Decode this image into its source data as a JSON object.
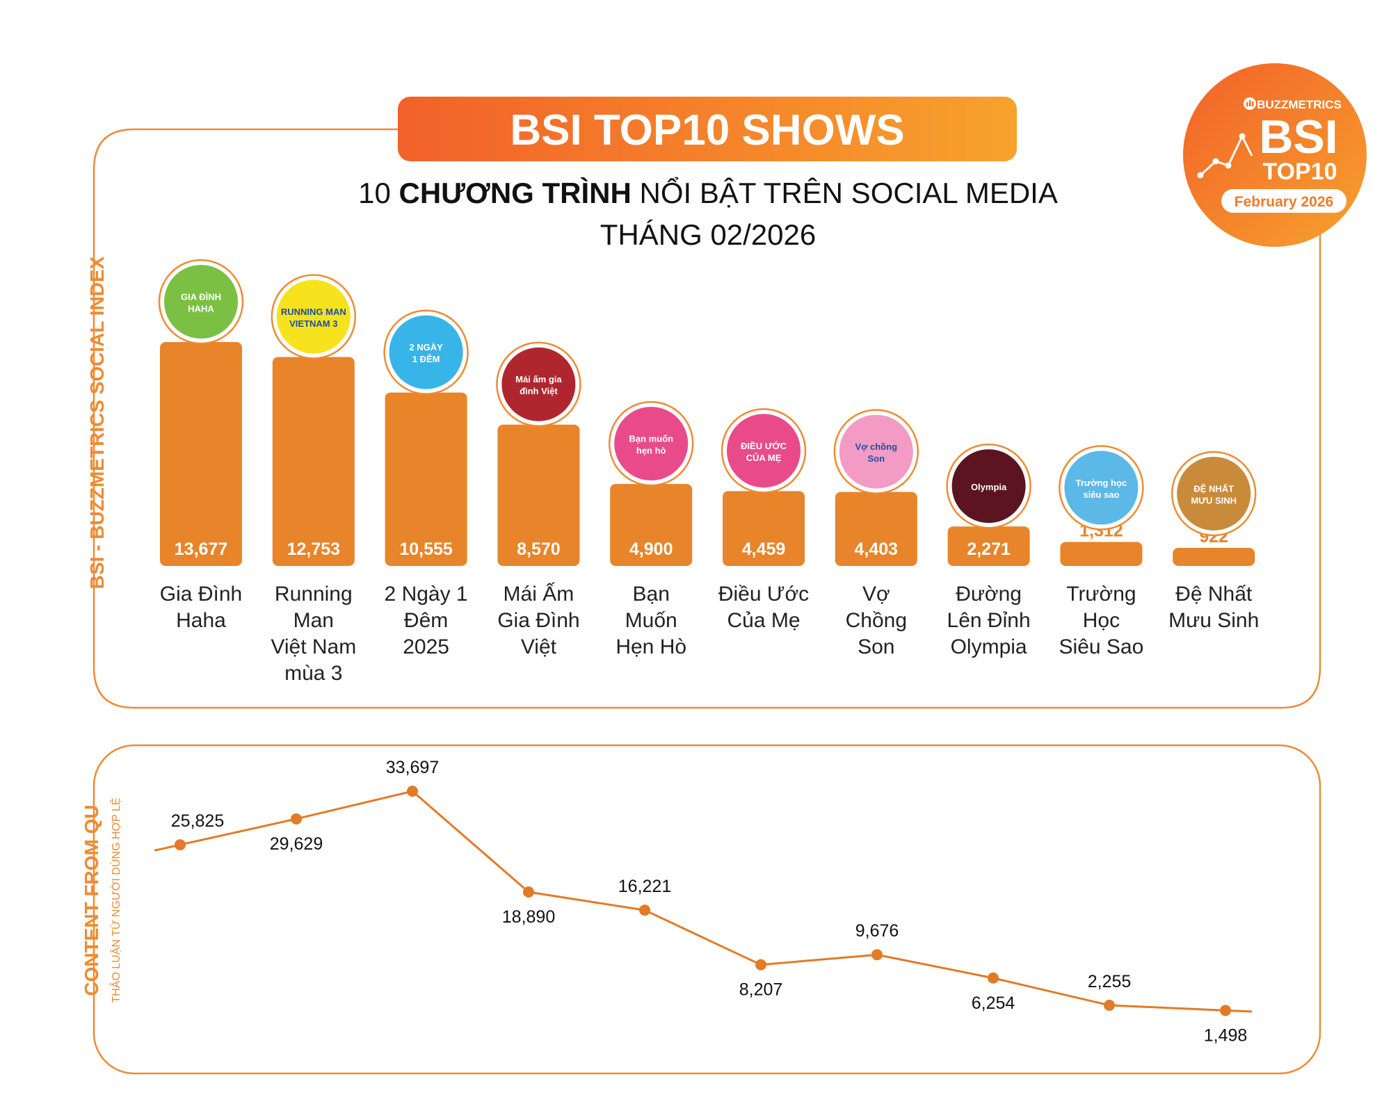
{
  "header": {
    "title": "BSI TOP10 SHOWS",
    "subtitle_prefix": "10 ",
    "subtitle_bold": "CHƯƠNG TRÌNH",
    "subtitle_rest": " NỔI BẬT TRÊN SOCIAL MEDIA",
    "subtitle_line2": "THÁNG 02/2026"
  },
  "badge": {
    "brand": "BUZZMETRICS",
    "big": "BSI",
    "top10": "TOP10",
    "month": "February 2026"
  },
  "colors": {
    "bar": "#E8842A",
    "frame": "#EE8B33",
    "accent_start": "#F2612A",
    "accent_end": "#F7A22C",
    "line": "#E27B27",
    "text": "#111111",
    "label": "#222222"
  },
  "chart_data": [
    {
      "type": "bar",
      "ylabel": "BSI - BUZZMETRICS SOCIAL INDEX",
      "categories": [
        [
          "Gia Đình",
          "Haha"
        ],
        [
          "Running",
          "Man",
          "Việt Nam",
          "mùa 3"
        ],
        [
          "2 Ngày 1",
          "Đêm",
          "2025"
        ],
        [
          "Mái Ấm",
          "Gia Đình",
          "Việt"
        ],
        [
          "Bạn",
          "Muốn",
          "Hẹn Hò"
        ],
        [
          "Điều Ước",
          "Của Mẹ"
        ],
        [
          "Vợ",
          "Chồng",
          "Son"
        ],
        [
          "Đường",
          "Lên Đỉnh",
          "Olympia"
        ],
        [
          "Trường",
          "Học",
          "Siêu Sao"
        ],
        [
          "Đệ Nhất",
          "Mưu Sinh"
        ]
      ],
      "values": [
        13677,
        12753,
        10555,
        8570,
        4900,
        4459,
        4403,
        2271,
        1312,
        922
      ],
      "value_labels": [
        "13,677",
        "12,753",
        "10,555",
        "8,570",
        "4,900",
        "4,459",
        "4,403",
        "2,271",
        "1,312",
        "922"
      ],
      "logo_text": [
        "GIA ĐÌNH HAHA",
        "RUNNING MAN VIETNAM 3",
        "2 NGÀY 1 ĐÊM",
        "Mái ấm gia đình Việt",
        "Bạn muốn hẹn hò",
        "ĐIỀU ƯỚC CỦA MẸ",
        "Vợ chồng Son",
        "Olympia",
        "Trường học siêu sao",
        "ĐỆ NHẤT MƯU SINH"
      ],
      "ylim": [
        0,
        13677
      ]
    },
    {
      "type": "line",
      "ylabel": "CONTENT FROM QU",
      "ylabel_sub": "THẢO LUẬN TỪ NGƯỜI DÙNG HỢP LỆ",
      "values": [
        25825,
        29629,
        33697,
        18890,
        16221,
        8207,
        9676,
        6254,
        2255,
        1498
      ],
      "value_labels": [
        "25,825",
        "29,629",
        "33,697",
        "18,890",
        "16,221",
        "8,207",
        "9,676",
        "6,254",
        "2,255",
        "1,498"
      ],
      "label_positions": [
        "above",
        "below",
        "above",
        "below",
        "above",
        "below",
        "above",
        "below",
        "above",
        "below"
      ],
      "ylim": [
        0,
        33697
      ]
    }
  ]
}
